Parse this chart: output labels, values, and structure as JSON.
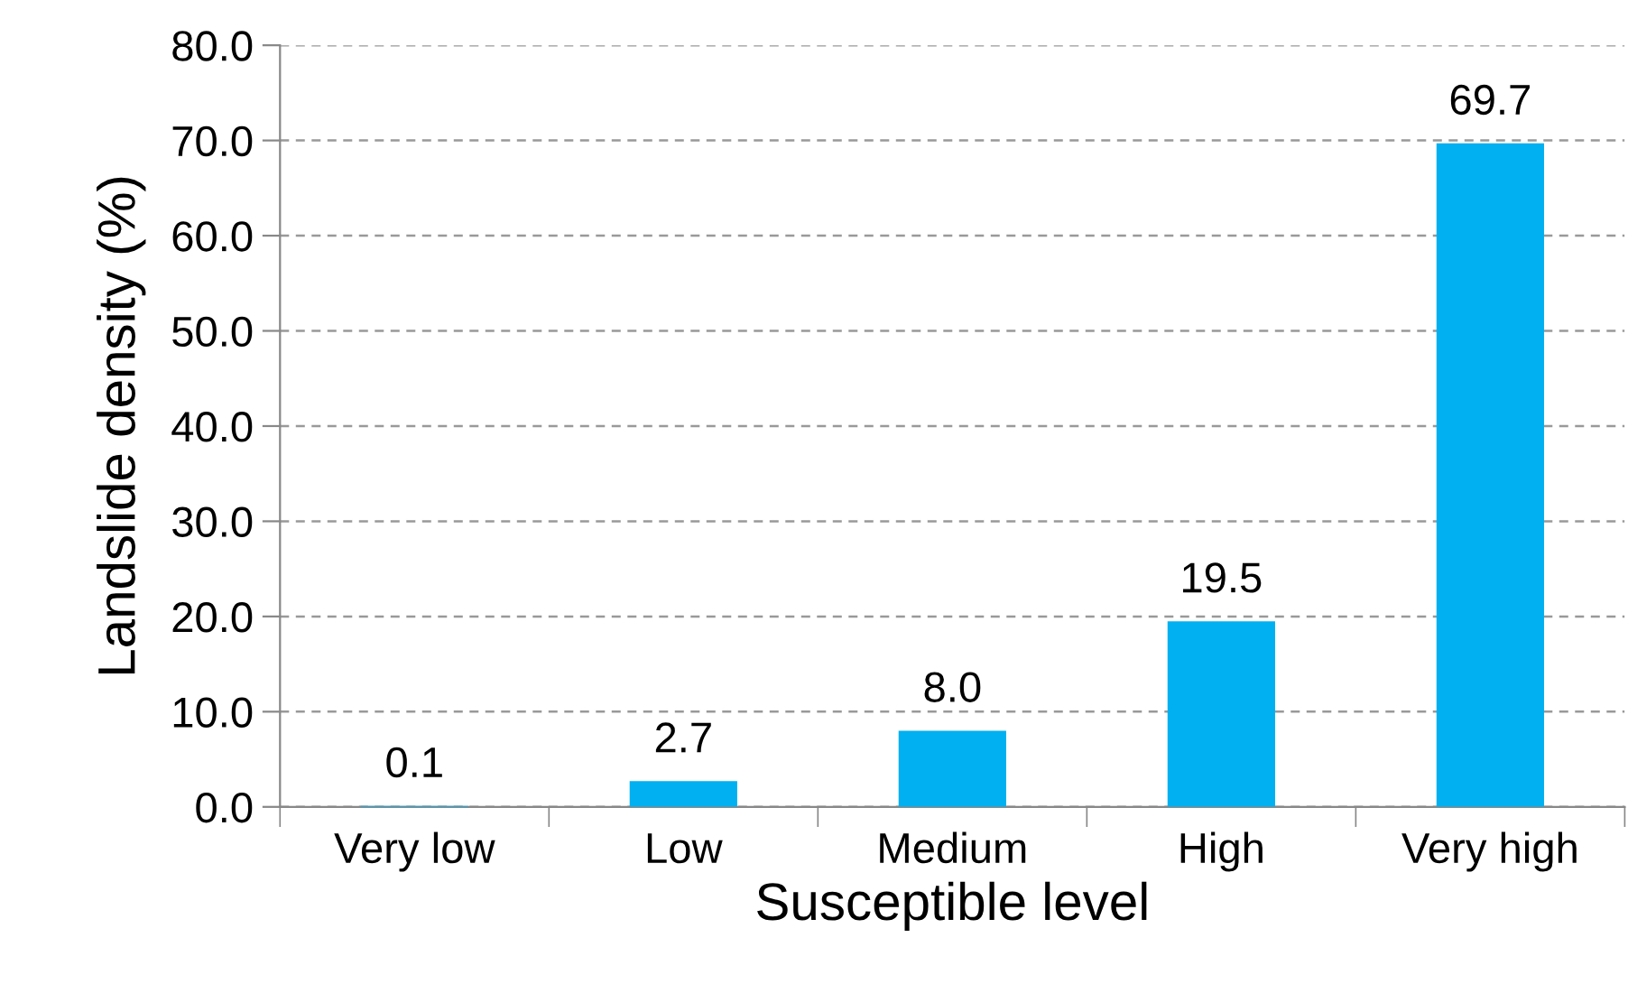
{
  "chart_data": {
    "type": "bar",
    "xlabel": "Susceptible level",
    "ylabel": "Landslide density (%)",
    "categories": [
      "Very low",
      "Low",
      "Medium",
      "High",
      "Very high"
    ],
    "values": [
      0.1,
      2.7,
      8.0,
      19.5,
      69.7
    ],
    "value_labels": [
      "0.1",
      "2.7",
      "8.0",
      "19.5",
      "69.7"
    ],
    "color": "#00b0f0",
    "ylim": [
      0,
      80
    ],
    "yticks": [
      {
        "value": 0,
        "label": "0.0"
      },
      {
        "value": 10,
        "label": "10.0"
      },
      {
        "value": 20,
        "label": "20.0"
      },
      {
        "value": 30,
        "label": "30.0"
      },
      {
        "value": 40,
        "label": "40.0"
      },
      {
        "value": 50,
        "label": "50.0"
      },
      {
        "value": 60,
        "label": "60.0"
      },
      {
        "value": 70,
        "label": "70.0"
      },
      {
        "value": 80,
        "label": "80.0"
      }
    ],
    "grid": "y",
    "line_style": "dashed"
  }
}
